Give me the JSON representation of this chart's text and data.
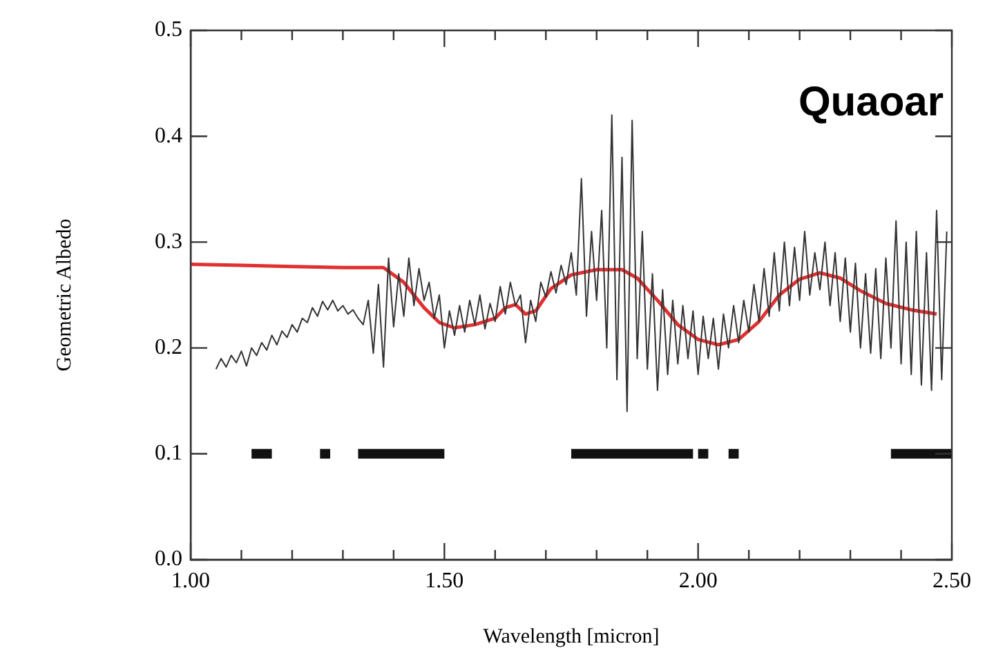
{
  "chart_data": {
    "type": "line",
    "xlabel": "Wavelength [micron]",
    "ylabel": "Geometric Albedo",
    "annotations": [
      "Quaoar"
    ],
    "xlim": [
      1.0,
      2.5
    ],
    "xticks": [
      {
        "value": 1.0,
        "label": "1.00"
      },
      {
        "value": 1.1,
        "label": null
      },
      {
        "value": 1.2,
        "label": null
      },
      {
        "value": 1.3,
        "label": null
      },
      {
        "value": 1.4,
        "label": null
      },
      {
        "value": 1.5,
        "label": "1.50"
      },
      {
        "value": 1.6,
        "label": null
      },
      {
        "value": 1.7,
        "label": null
      },
      {
        "value": 1.8,
        "label": null
      },
      {
        "value": 1.9,
        "label": null
      },
      {
        "value": 2.0,
        "label": "2.00"
      },
      {
        "value": 2.1,
        "label": null
      },
      {
        "value": 2.2,
        "label": null
      },
      {
        "value": 2.3,
        "label": null
      },
      {
        "value": 2.4,
        "label": null
      },
      {
        "value": 2.5,
        "label": "2.50"
      }
    ],
    "ylim": [
      0.0,
      0.5
    ],
    "yticks": [
      {
        "value": 0.0,
        "label": "0.0"
      },
      {
        "value": 0.1,
        "label": "0.1"
      },
      {
        "value": 0.2,
        "label": "0.2"
      },
      {
        "value": 0.3,
        "label": "0.3"
      },
      {
        "value": 0.4,
        "label": "0.4"
      },
      {
        "value": 0.5,
        "label": "0.5"
      }
    ],
    "grid": false,
    "legend": false,
    "marker": "none",
    "line_style": "solid",
    "x": [
      1.05,
      1.06,
      1.07,
      1.08,
      1.09,
      1.1,
      1.11,
      1.12,
      1.13,
      1.14,
      1.15,
      1.16,
      1.17,
      1.18,
      1.19,
      1.2,
      1.21,
      1.22,
      1.23,
      1.24,
      1.25,
      1.26,
      1.27,
      1.28,
      1.29,
      1.3,
      1.31,
      1.32,
      1.33,
      1.34,
      1.35,
      1.36,
      1.37,
      1.38,
      1.39,
      1.4,
      1.41,
      1.42,
      1.43,
      1.44,
      1.45,
      1.46,
      1.47,
      1.48,
      1.49,
      1.5,
      1.51,
      1.52,
      1.53,
      1.54,
      1.55,
      1.56,
      1.57,
      1.58,
      1.59,
      1.6,
      1.61,
      1.62,
      1.63,
      1.64,
      1.65,
      1.66,
      1.67,
      1.68,
      1.69,
      1.7,
      1.71,
      1.72,
      1.73,
      1.74,
      1.75,
      1.76,
      1.77,
      1.78,
      1.79,
      1.8,
      1.81,
      1.82,
      1.83,
      1.84,
      1.85,
      1.86,
      1.87,
      1.88,
      1.89,
      1.9,
      1.91,
      1.92,
      1.93,
      1.94,
      1.95,
      1.96,
      1.97,
      1.98,
      1.99,
      2.0,
      2.01,
      2.02,
      2.03,
      2.04,
      2.05,
      2.06,
      2.07,
      2.08,
      2.09,
      2.1,
      2.11,
      2.12,
      2.13,
      2.14,
      2.15,
      2.16,
      2.17,
      2.18,
      2.19,
      2.2,
      2.21,
      2.22,
      2.23,
      2.24,
      2.25,
      2.26,
      2.27,
      2.28,
      2.29,
      2.3,
      2.31,
      2.32,
      2.33,
      2.34,
      2.35,
      2.36,
      2.37,
      2.38,
      2.39,
      2.4,
      2.41,
      2.42,
      2.43,
      2.44,
      2.45,
      2.46,
      2.47,
      2.48,
      2.49
    ],
    "series": [
      {
        "color": "#333333",
        "values": [
          0.18,
          0.19,
          0.182,
          0.193,
          0.186,
          0.197,
          0.183,
          0.2,
          0.193,
          0.205,
          0.198,
          0.212,
          0.203,
          0.216,
          0.21,
          0.222,
          0.215,
          0.228,
          0.224,
          0.238,
          0.23,
          0.244,
          0.236,
          0.245,
          0.235,
          0.24,
          0.232,
          0.236,
          0.228,
          0.222,
          0.245,
          0.195,
          0.26,
          0.182,
          0.285,
          0.22,
          0.27,
          0.23,
          0.285,
          0.24,
          0.275,
          0.245,
          0.262,
          0.228,
          0.25,
          0.2,
          0.235,
          0.212,
          0.24,
          0.215,
          0.245,
          0.222,
          0.25,
          0.218,
          0.242,
          0.225,
          0.258,
          0.232,
          0.262,
          0.24,
          0.25,
          0.205,
          0.245,
          0.225,
          0.262,
          0.248,
          0.272,
          0.252,
          0.278,
          0.26,
          0.29,
          0.25,
          0.36,
          0.23,
          0.31,
          0.245,
          0.33,
          0.2,
          0.42,
          0.17,
          0.38,
          0.14,
          0.415,
          0.19,
          0.31,
          0.18,
          0.27,
          0.16,
          0.255,
          0.175,
          0.245,
          0.185,
          0.24,
          0.19,
          0.235,
          0.175,
          0.23,
          0.19,
          0.228,
          0.18,
          0.232,
          0.2,
          0.24,
          0.205,
          0.245,
          0.215,
          0.26,
          0.225,
          0.275,
          0.23,
          0.29,
          0.235,
          0.3,
          0.24,
          0.295,
          0.245,
          0.31,
          0.25,
          0.29,
          0.255,
          0.3,
          0.24,
          0.29,
          0.225,
          0.285,
          0.215,
          0.28,
          0.2,
          0.27,
          0.195,
          0.275,
          0.19,
          0.285,
          0.2,
          0.32,
          0.185,
          0.3,
          0.175,
          0.31,
          0.165,
          0.29,
          0.16,
          0.33,
          0.17,
          0.31
        ]
      },
      {
        "color": "#e03030",
        "x": [
          1.0,
          1.1,
          1.2,
          1.3,
          1.38,
          1.42,
          1.46,
          1.49,
          1.52,
          1.56,
          1.6,
          1.62,
          1.64,
          1.66,
          1.68,
          1.71,
          1.75,
          1.8,
          1.85,
          1.88,
          1.92,
          1.96,
          2.0,
          2.04,
          2.08,
          2.12,
          2.16,
          2.2,
          2.24,
          2.28,
          2.32,
          2.37,
          2.42,
          2.47
        ],
        "values": [
          0.279,
          0.278,
          0.277,
          0.276,
          0.276,
          0.262,
          0.238,
          0.224,
          0.219,
          0.222,
          0.228,
          0.238,
          0.241,
          0.232,
          0.235,
          0.256,
          0.269,
          0.274,
          0.274,
          0.266,
          0.245,
          0.222,
          0.208,
          0.203,
          0.208,
          0.225,
          0.25,
          0.265,
          0.271,
          0.266,
          0.254,
          0.242,
          0.236,
          0.232
        ]
      },
      {
        "color": "#111111",
        "x": [
          1.12,
          1.16,
          1.2,
          1.255,
          1.275,
          1.3,
          1.33,
          1.5,
          1.6,
          1.75,
          1.99,
          1.995,
          2.0,
          2.02,
          2.04,
          2.06,
          2.08,
          2.2,
          2.38,
          2.5
        ],
        "values": [
          0.1,
          0.1,
          null,
          0.1,
          0.1,
          null,
          0.1,
          0.1,
          null,
          0.1,
          0.1,
          null,
          0.1,
          0.1,
          null,
          0.1,
          0.1,
          null,
          0.1,
          0.1
        ]
      }
    ]
  }
}
